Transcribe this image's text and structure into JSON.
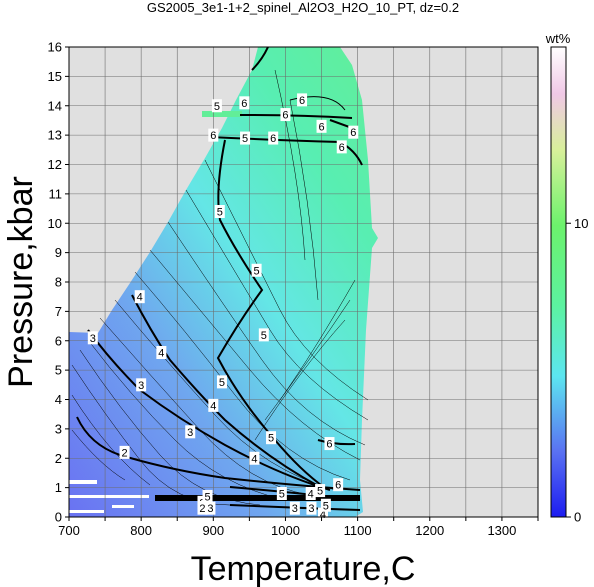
{
  "chart_data": {
    "type": "heatmap",
    "title": "GS2005_3e1-1+2_spinel_Al2O3_H2O_10_PT, dz=0.2",
    "xlabel": "Temperature,C",
    "ylabel": "Pressure,kbar",
    "xlim": [
      700,
      1350
    ],
    "ylim": [
      0,
      16
    ],
    "x_ticks": [
      "700",
      "800",
      "900",
      "1000",
      "1100",
      "1200",
      "1300"
    ],
    "y_ticks": [
      "0",
      "1",
      "2",
      "3",
      "4",
      "5",
      "6",
      "7",
      "8",
      "9",
      "10",
      "11",
      "12",
      "13",
      "14",
      "15",
      "16"
    ],
    "grid": true,
    "colorbar": {
      "label": "wt%",
      "ticks": [
        "0",
        "10"
      ],
      "range": [
        0,
        16
      ]
    },
    "contour_labels": [
      {
        "text": "2",
        "x": 777,
        "y": 2.2
      },
      {
        "text": "2",
        "x": 885,
        "y": 0.5
      },
      {
        "text": "2",
        "x": 885,
        "y": 0.3
      },
      {
        "text": "3",
        "x": 733,
        "y": 6.1
      },
      {
        "text": "3",
        "x": 800,
        "y": 4.5
      },
      {
        "text": "3",
        "x": 868,
        "y": 2.9
      },
      {
        "text": "3",
        "x": 896,
        "y": 0.3
      },
      {
        "text": "3",
        "x": 1013,
        "y": 0.3
      },
      {
        "text": "3",
        "x": 1036,
        "y": 0.3
      },
      {
        "text": "4",
        "x": 798,
        "y": 7.5
      },
      {
        "text": "4",
        "x": 828,
        "y": 5.6
      },
      {
        "text": "4",
        "x": 900,
        "y": 3.8
      },
      {
        "text": "4",
        "x": 957,
        "y": 2.0
      },
      {
        "text": "4",
        "x": 1035,
        "y": 0.8
      },
      {
        "text": "4",
        "x": 1052,
        "y": 0.1
      },
      {
        "text": "5",
        "x": 905,
        "y": 14.0
      },
      {
        "text": "5",
        "x": 944,
        "y": 12.9
      },
      {
        "text": "5",
        "x": 909,
        "y": 10.4
      },
      {
        "text": "5",
        "x": 960,
        "y": 8.4
      },
      {
        "text": "5",
        "x": 970,
        "y": 6.2
      },
      {
        "text": "5",
        "x": 912,
        "y": 4.6
      },
      {
        "text": "5",
        "x": 980,
        "y": 2.7
      },
      {
        "text": "5",
        "x": 892,
        "y": 0.7
      },
      {
        "text": "5",
        "x": 995,
        "y": 0.8
      },
      {
        "text": "5",
        "x": 1048,
        "y": 0.9
      },
      {
        "text": "5",
        "x": 1056,
        "y": 0.4
      },
      {
        "text": "6",
        "x": 943,
        "y": 14.1
      },
      {
        "text": "6",
        "x": 1023,
        "y": 14.2
      },
      {
        "text": "6",
        "x": 1000,
        "y": 13.7
      },
      {
        "text": "6",
        "x": 1050,
        "y": 13.3
      },
      {
        "text": "6",
        "x": 1094,
        "y": 13.1
      },
      {
        "text": "6",
        "x": 900,
        "y": 13.0
      },
      {
        "text": "6",
        "x": 983,
        "y": 12.9
      },
      {
        "text": "6",
        "x": 1078,
        "y": 12.6
      },
      {
        "text": "6",
        "x": 1061,
        "y": 2.5
      },
      {
        "text": "6",
        "x": 1073,
        "y": 1.1
      }
    ]
  }
}
